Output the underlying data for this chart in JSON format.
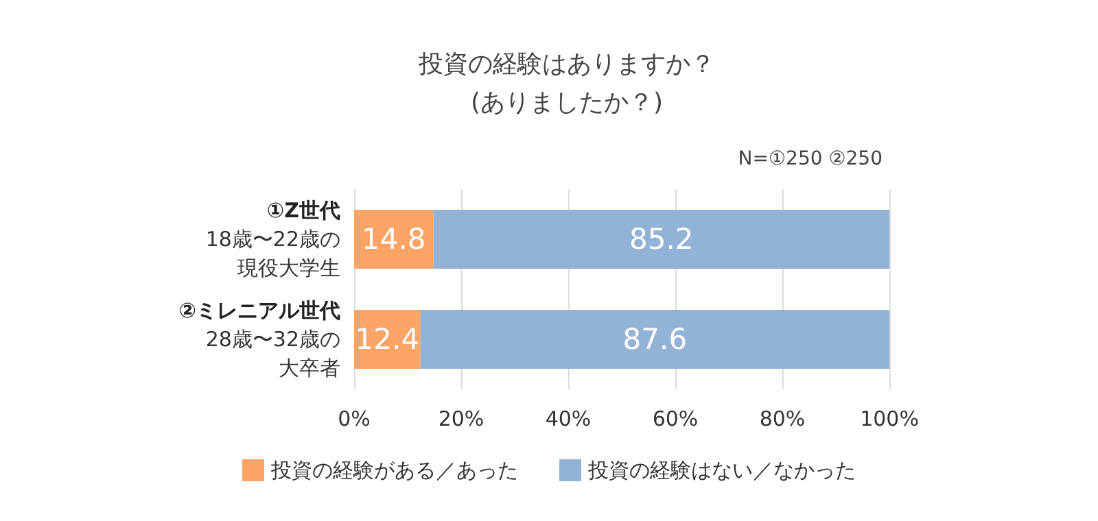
{
  "chart_data": {
    "type": "bar",
    "orientation": "horizontal",
    "stacked": true,
    "title": "投資の経験はありますか？\n(ありましたか？)",
    "subtitle": "N=①250 ②250",
    "categories": [
      "①Z世代\n18歳〜22歳の現役大学生",
      "②ミレニアル世代\n28歳〜32歳の大卒者"
    ],
    "series": [
      {
        "name": "投資の経験がある／あった",
        "color": "#fba466",
        "values": [
          14.8,
          12.4
        ]
      },
      {
        "name": "投資の経験はない／なかった",
        "color": "#93b3d6",
        "values": [
          85.2,
          87.6
        ]
      }
    ],
    "xlim": [
      0,
      100
    ],
    "xticks": [
      {
        "value": 0,
        "label": "0%"
      },
      {
        "value": 20,
        "label": "20%"
      },
      {
        "value": 40,
        "label": "40%"
      },
      {
        "value": 60,
        "label": "60%"
      },
      {
        "value": 80,
        "label": "80%"
      },
      {
        "value": 100,
        "label": "100%"
      }
    ],
    "grid": "x",
    "data_labels": true,
    "legend": "bottom"
  }
}
